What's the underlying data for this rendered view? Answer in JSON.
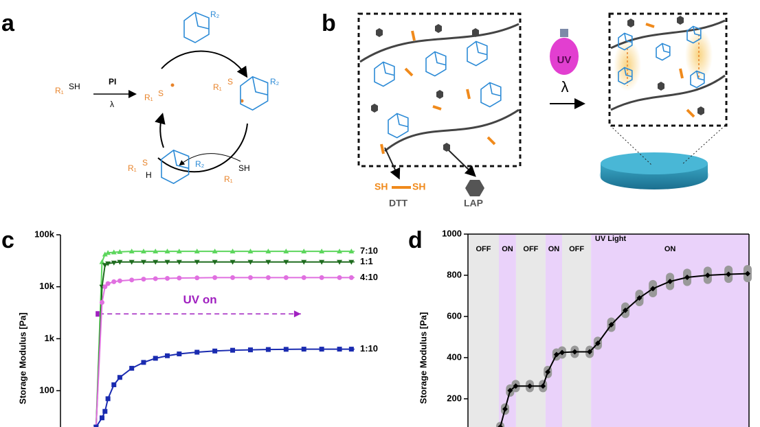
{
  "panel_labels": [
    "a",
    "b",
    "c",
    "d"
  ],
  "scheme_a": {
    "initiator": "PI",
    "light": "λ",
    "r1": "R₁",
    "sh": "SH",
    "s": "S",
    "r2": "R₂",
    "h": "H"
  },
  "scheme_b": {
    "thiol": "SH",
    "dtt": "DTT",
    "lap": "LAP",
    "uv": "UV",
    "light": "λ"
  },
  "chart_data": [
    {
      "type": "line",
      "y_label": "Storage Modulus [Pa]",
      "log_y": true,
      "annotation": "UV on",
      "annotation_color": "#a020c0",
      "annotation_x": [
        13,
        81
      ],
      "annotation_y": 3000,
      "x": [
        12,
        14,
        15,
        16,
        18,
        20,
        24,
        28,
        32,
        36,
        40,
        46,
        52,
        58,
        64,
        70,
        76,
        82,
        88,
        94,
        98
      ],
      "xlim": [
        0,
        100
      ],
      "ylim": [
        20,
        100000
      ],
      "yticks": [
        100,
        {
          "value": 1000,
          "label": "1k"
        },
        {
          "value": 10000,
          "label": "10k"
        },
        {
          "value": 100000,
          "label": "100k"
        }
      ],
      "series": [
        {
          "name": "7:10",
          "color": "#5cd65c",
          "marker": "triangle-up",
          "values": [
            20,
            30000,
            42000,
            45000,
            46000,
            47000,
            48000,
            48000,
            48000,
            48000,
            48000,
            48000,
            48000,
            48000,
            48000,
            48000,
            48000,
            48000,
            48000,
            48000,
            48000
          ]
        },
        {
          "name": "1:1",
          "color": "#1e6b1e",
          "marker": "triangle-down",
          "values": [
            20,
            10000,
            26000,
            28000,
            29000,
            30000,
            30000,
            30000,
            30000,
            30000,
            30000,
            30000,
            30000,
            30000,
            30000,
            30000,
            30000,
            30000,
            30000,
            30000,
            30000
          ]
        },
        {
          "name": "4:10",
          "color": "#e070e0",
          "marker": "circle",
          "values": [
            20,
            5000,
            10000,
            11500,
            12500,
            13000,
            13500,
            14000,
            14300,
            14500,
            14700,
            14800,
            15000,
            15000,
            15000,
            15000,
            15000,
            15000,
            15000,
            15000,
            15000
          ]
        },
        {
          "name": "1:10",
          "color": "#1a2bb0",
          "marker": "square",
          "values": [
            20,
            30,
            40,
            70,
            130,
            180,
            270,
            350,
            420,
            470,
            510,
            550,
            580,
            600,
            610,
            620,
            625,
            630,
            630,
            630,
            630
          ]
        }
      ]
    },
    {
      "type": "line",
      "title": "UV Light",
      "y_label": "Storage Modulus [Pa]",
      "x": [
        11.5,
        13.2,
        15,
        17,
        22,
        26.7,
        28.4,
        31.5,
        33.5,
        38,
        43.3,
        46.2,
        51,
        56,
        61,
        65.8,
        71.9,
        78,
        85.3,
        92.7,
        99.5
      ],
      "xlim": [
        0,
        100
      ],
      "ylim": [
        63,
        1000
      ],
      "yticks": [
        200,
        400,
        600,
        800,
        1000
      ],
      "regions": [
        {
          "label": "OFF",
          "start": 0,
          "end": 11,
          "color": "#e8e8e8"
        },
        {
          "label": "ON",
          "start": 11,
          "end": 17.1,
          "color": "#ead2fa"
        },
        {
          "label": "OFF",
          "start": 17.1,
          "end": 27.6,
          "color": "#e8e8e8"
        },
        {
          "label": "ON",
          "start": 27.6,
          "end": 33.5,
          "color": "#ead2fa"
        },
        {
          "label": "OFF",
          "start": 33.5,
          "end": 43.8,
          "color": "#e8e8e8"
        },
        {
          "label": "ON",
          "start": 43.8,
          "end": 100,
          "color": "#ead2fa"
        }
      ],
      "series": [
        {
          "color": "#000000",
          "error_color": "#999999",
          "values": [
            63,
            150,
            240,
            262,
            262,
            262,
            330,
            415,
            425,
            428,
            428,
            470,
            560,
            630,
            690,
            735,
            770,
            790,
            800,
            805,
            808
          ],
          "errors": [
            5,
            8,
            10,
            10,
            10,
            10,
            10,
            10,
            10,
            10,
            10,
            12,
            15,
            18,
            20,
            22,
            22,
            22,
            22,
            22,
            22
          ]
        }
      ]
    }
  ]
}
